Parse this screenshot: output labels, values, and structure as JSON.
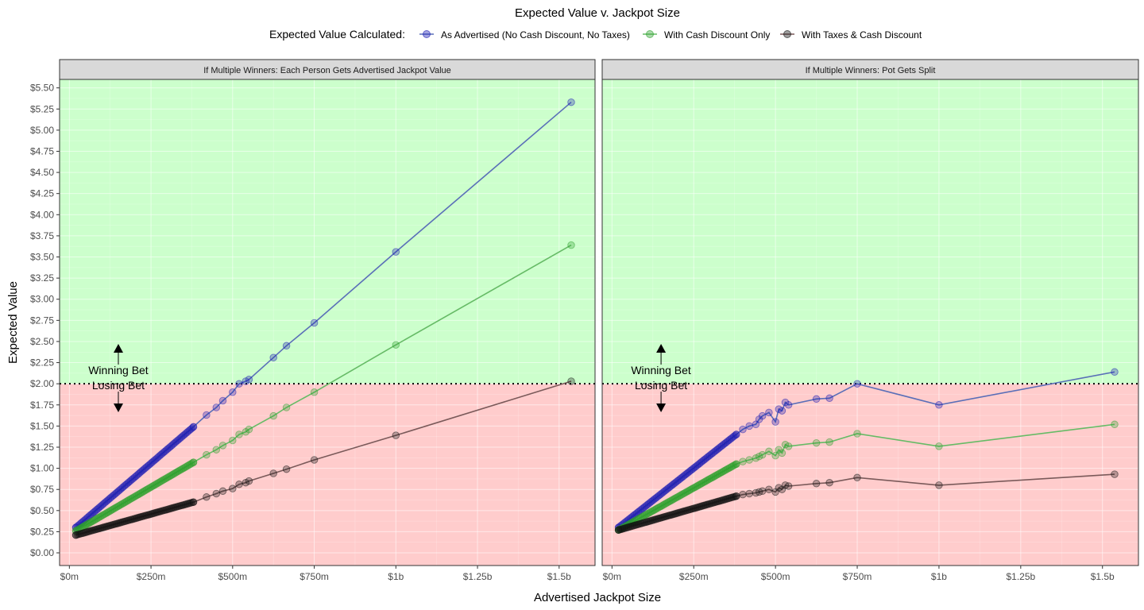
{
  "chart_data": {
    "type": "line",
    "title": "Expected Value v. Jackpot Size",
    "xlabel": "Advertised Jackpot Size",
    "ylabel": "Expected Value",
    "legend": {
      "title": "Expected Value Calculated:",
      "placement": "top",
      "entries": [
        {
          "label": "As Advertised (No Cash Discount, No Taxes)",
          "color": "#1a1ab3"
        },
        {
          "label": "With Cash Discount Only",
          "color": "#2ca02c"
        },
        {
          "label": "With Taxes & Cash Discount",
          "color": "#111111"
        }
      ]
    },
    "colors": {
      "winning_region": "#ccffcc",
      "losing_region": "#ffcccc",
      "line_advertised": "#5a6fb8",
      "line_cash": "#66bb66",
      "line_taxes": "#7a5a5a",
      "strip_background": "#d9d9d9"
    },
    "x_ticks": [
      "$0m",
      "$250m",
      "$500m",
      "$750m",
      "$1b",
      "$1.25b",
      "$1.5b"
    ],
    "x_tick_values": [
      0,
      250,
      500,
      750,
      1000,
      1250,
      1500
    ],
    "xlim": [
      -30,
      1610
    ],
    "y_ticks": [
      "$0.00",
      "$0.25",
      "$0.50",
      "$0.75",
      "$1.00",
      "$1.25",
      "$1.50",
      "$1.75",
      "$2.00",
      "$2.25",
      "$2.50",
      "$2.75",
      "$3.00",
      "$3.25",
      "$3.50",
      "$3.75",
      "$4.00",
      "$4.25",
      "$4.50",
      "$4.75",
      "$5.00",
      "$5.25",
      "$5.50"
    ],
    "y_tick_values": [
      0,
      0.25,
      0.5,
      0.75,
      1.0,
      1.25,
      1.5,
      1.75,
      2.0,
      2.25,
      2.5,
      2.75,
      3.0,
      3.25,
      3.5,
      3.75,
      4.0,
      4.25,
      4.5,
      4.75,
      5.0,
      5.25,
      5.5
    ],
    "ylim": [
      -0.15,
      5.6
    ],
    "threshold": 2.0,
    "grid": true,
    "annotations": {
      "winning": "Winning Bet",
      "losing": "Losing Bet",
      "x": 150
    },
    "panels": [
      {
        "strip": "If Multiple Winners: Each Person Gets Advertised Jackpot Value",
        "series": [
          {
            "name": "As Advertised (No Cash Discount, No Taxes)",
            "x": [
              20,
              380,
              420,
              450,
              470,
              500,
              520,
              540,
              550,
              625,
              665,
              750,
              1000,
              1537
            ],
            "y": [
              0.3,
              1.49,
              1.63,
              1.72,
              1.8,
              1.9,
              2.0,
              2.03,
              2.05,
              2.31,
              2.45,
              2.72,
              3.56,
              5.33
            ]
          },
          {
            "name": "With Cash Discount Only",
            "x": [
              20,
              380,
              420,
              450,
              470,
              500,
              520,
              540,
              550,
              625,
              665,
              750,
              1000,
              1537
            ],
            "y": [
              0.26,
              1.07,
              1.16,
              1.22,
              1.27,
              1.33,
              1.4,
              1.43,
              1.46,
              1.62,
              1.72,
              1.9,
              2.46,
              3.64
            ]
          },
          {
            "name": "With Taxes & Cash Discount",
            "x": [
              20,
              380,
              420,
              450,
              470,
              500,
              520,
              540,
              550,
              625,
              665,
              750,
              1000,
              1537
            ],
            "y": [
              0.21,
              0.6,
              0.66,
              0.7,
              0.73,
              0.76,
              0.81,
              0.83,
              0.85,
              0.94,
              0.99,
              1.1,
              1.39,
              2.03
            ]
          }
        ]
      },
      {
        "strip": "If Multiple Winners: Pot Gets Split",
        "series": [
          {
            "name": "As Advertised (No Cash Discount, No Taxes)",
            "x": [
              20,
              380,
              400,
              420,
              440,
              450,
              460,
              480,
              500,
              510,
              520,
              530,
              540,
              625,
              665,
              750,
              1000,
              1537
            ],
            "y": [
              0.3,
              1.4,
              1.46,
              1.5,
              1.52,
              1.58,
              1.62,
              1.66,
              1.55,
              1.7,
              1.68,
              1.78,
              1.75,
              1.82,
              1.83,
              2.0,
              1.75,
              2.14
            ]
          },
          {
            "name": "With Cash Discount Only",
            "x": [
              20,
              380,
              400,
              420,
              440,
              450,
              460,
              480,
              500,
              510,
              520,
              530,
              540,
              625,
              665,
              750,
              1000,
              1537
            ],
            "y": [
              0.27,
              1.05,
              1.08,
              1.1,
              1.12,
              1.14,
              1.16,
              1.2,
              1.15,
              1.22,
              1.18,
              1.28,
              1.26,
              1.3,
              1.31,
              1.41,
              1.26,
              1.52
            ]
          },
          {
            "name": "With Taxes & Cash Discount",
            "x": [
              20,
              380,
              400,
              420,
              440,
              450,
              460,
              480,
              500,
              510,
              520,
              530,
              540,
              625,
              665,
              750,
              1000,
              1537
            ],
            "y": [
              0.27,
              0.67,
              0.69,
              0.7,
              0.71,
              0.72,
              0.73,
              0.75,
              0.72,
              0.77,
              0.75,
              0.8,
              0.79,
              0.82,
              0.83,
              0.89,
              0.8,
              0.93
            ]
          }
        ]
      }
    ]
  }
}
